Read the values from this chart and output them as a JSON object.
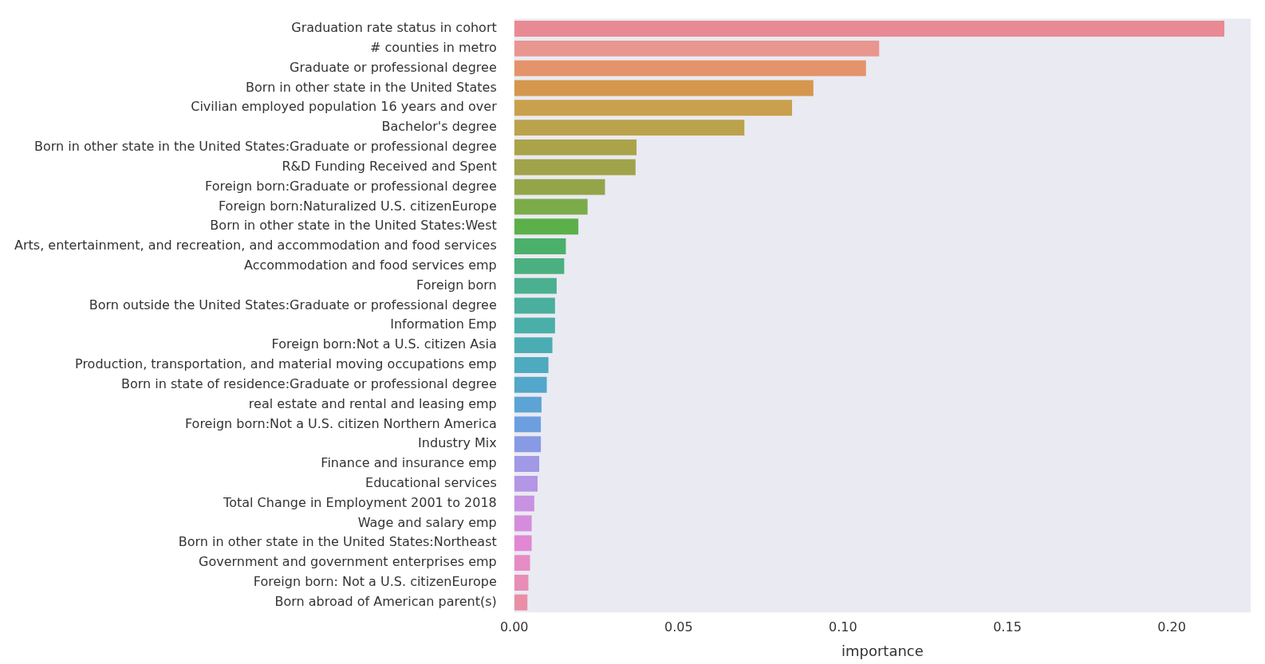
{
  "chart_data": {
    "type": "bar",
    "orientation": "horizontal",
    "xlabel": "importance",
    "categories": [
      "Graduation rate status in cohort",
      "# counties in metro",
      "Graduate or professional degree",
      "Born in other state in the United States",
      "Civilian employed population 16 years and over",
      "Bachelor's degree",
      "Born in other state in the United States:Graduate or professional degree",
      "R&D Funding Received and Spent",
      "Foreign born:Graduate or professional degree",
      "Foreign born:Naturalized U.S. citizenEurope",
      "Born in other state in the United States:West",
      "Arts, entertainment, and recreation, and accommodation and food services",
      "Accommodation and food services emp",
      "Foreign born",
      "Born outside the United States:Graduate or professional degree",
      "Information Emp",
      "Foreign born:Not a U.S. citizen Asia",
      "Production, transportation, and material moving occupations emp",
      "Born in state of residence:Graduate or professional degree",
      "real estate and rental and leasing emp",
      "Foreign born:Not a U.S. citizen Northern America",
      "Industry Mix",
      "Finance and insurance emp",
      "Educational services",
      "Total Change in Employment 2001 to 2018",
      "Wage and salary emp",
      "Born in other state in the United States:Northeast",
      "Government and government enterprises emp",
      "Foreign born: Not a U.S. citizenEurope",
      "Born abroad of American parent(s)"
    ],
    "values": [
      0.216,
      0.111,
      0.107,
      0.091,
      0.0845,
      0.07,
      0.0372,
      0.0369,
      0.0276,
      0.0223,
      0.0195,
      0.0157,
      0.0152,
      0.0129,
      0.0124,
      0.0124,
      0.0116,
      0.0104,
      0.0099,
      0.0083,
      0.0081,
      0.0081,
      0.0076,
      0.0071,
      0.0061,
      0.0053,
      0.0053,
      0.0048,
      0.0043,
      0.004
    ],
    "colors": [
      "#e88a93",
      "#e8968f",
      "#e4936a",
      "#d5974e",
      "#c9a04b",
      "#bba24c",
      "#aba34a",
      "#a0a34a",
      "#93a548",
      "#7cab49",
      "#5cb04a",
      "#4bb06a",
      "#4bb07f",
      "#4bb08f",
      "#4aaf9c",
      "#4aafa8",
      "#4badb4",
      "#4eaabf",
      "#53a7ca",
      "#5ca4d6",
      "#6d9fe0",
      "#899ae5",
      "#a198e6",
      "#b396e6",
      "#c792e2",
      "#d68cdc",
      "#e187d3",
      "#e78bc4",
      "#e88db6",
      "#e98ea6"
    ],
    "xlim": [
      0,
      0.224
    ],
    "xticks": [
      {
        "value": 0,
        "label": "0.00"
      },
      {
        "value": 0.05,
        "label": "0.05"
      },
      {
        "value": 0.1,
        "label": "0.10"
      },
      {
        "value": 0.15,
        "label": "0.15"
      },
      {
        "value": 0.2,
        "label": "0.20"
      }
    ]
  }
}
